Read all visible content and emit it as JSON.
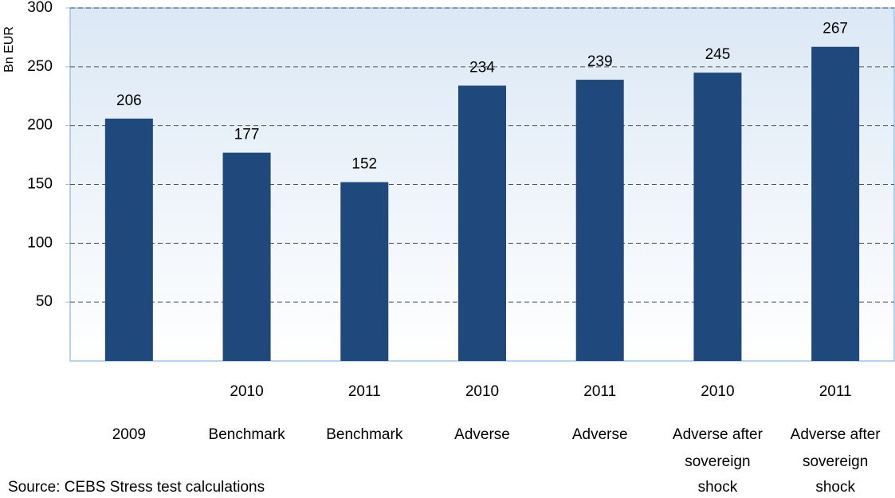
{
  "chart_data": {
    "type": "bar",
    "y_label": "Bn EUR",
    "source": "Source: CEBS Stress test calculations",
    "categories": [
      [
        "2009"
      ],
      [
        "2010",
        "Benchmark"
      ],
      [
        "2011",
        "Benchmark"
      ],
      [
        "2010",
        "Adverse"
      ],
      [
        "2011",
        "Adverse"
      ],
      [
        "2010",
        "Adverse after",
        "sovereign",
        "shock"
      ],
      [
        "2011",
        "Adverse after",
        "sovereign",
        "shock"
      ]
    ],
    "values": [
      206,
      177,
      152,
      234,
      239,
      245,
      267
    ],
    "color": "#1f497d",
    "ylim": [
      0,
      300
    ],
    "yticks": [
      50,
      100,
      150,
      200,
      250,
      300
    ],
    "grid": true
  }
}
